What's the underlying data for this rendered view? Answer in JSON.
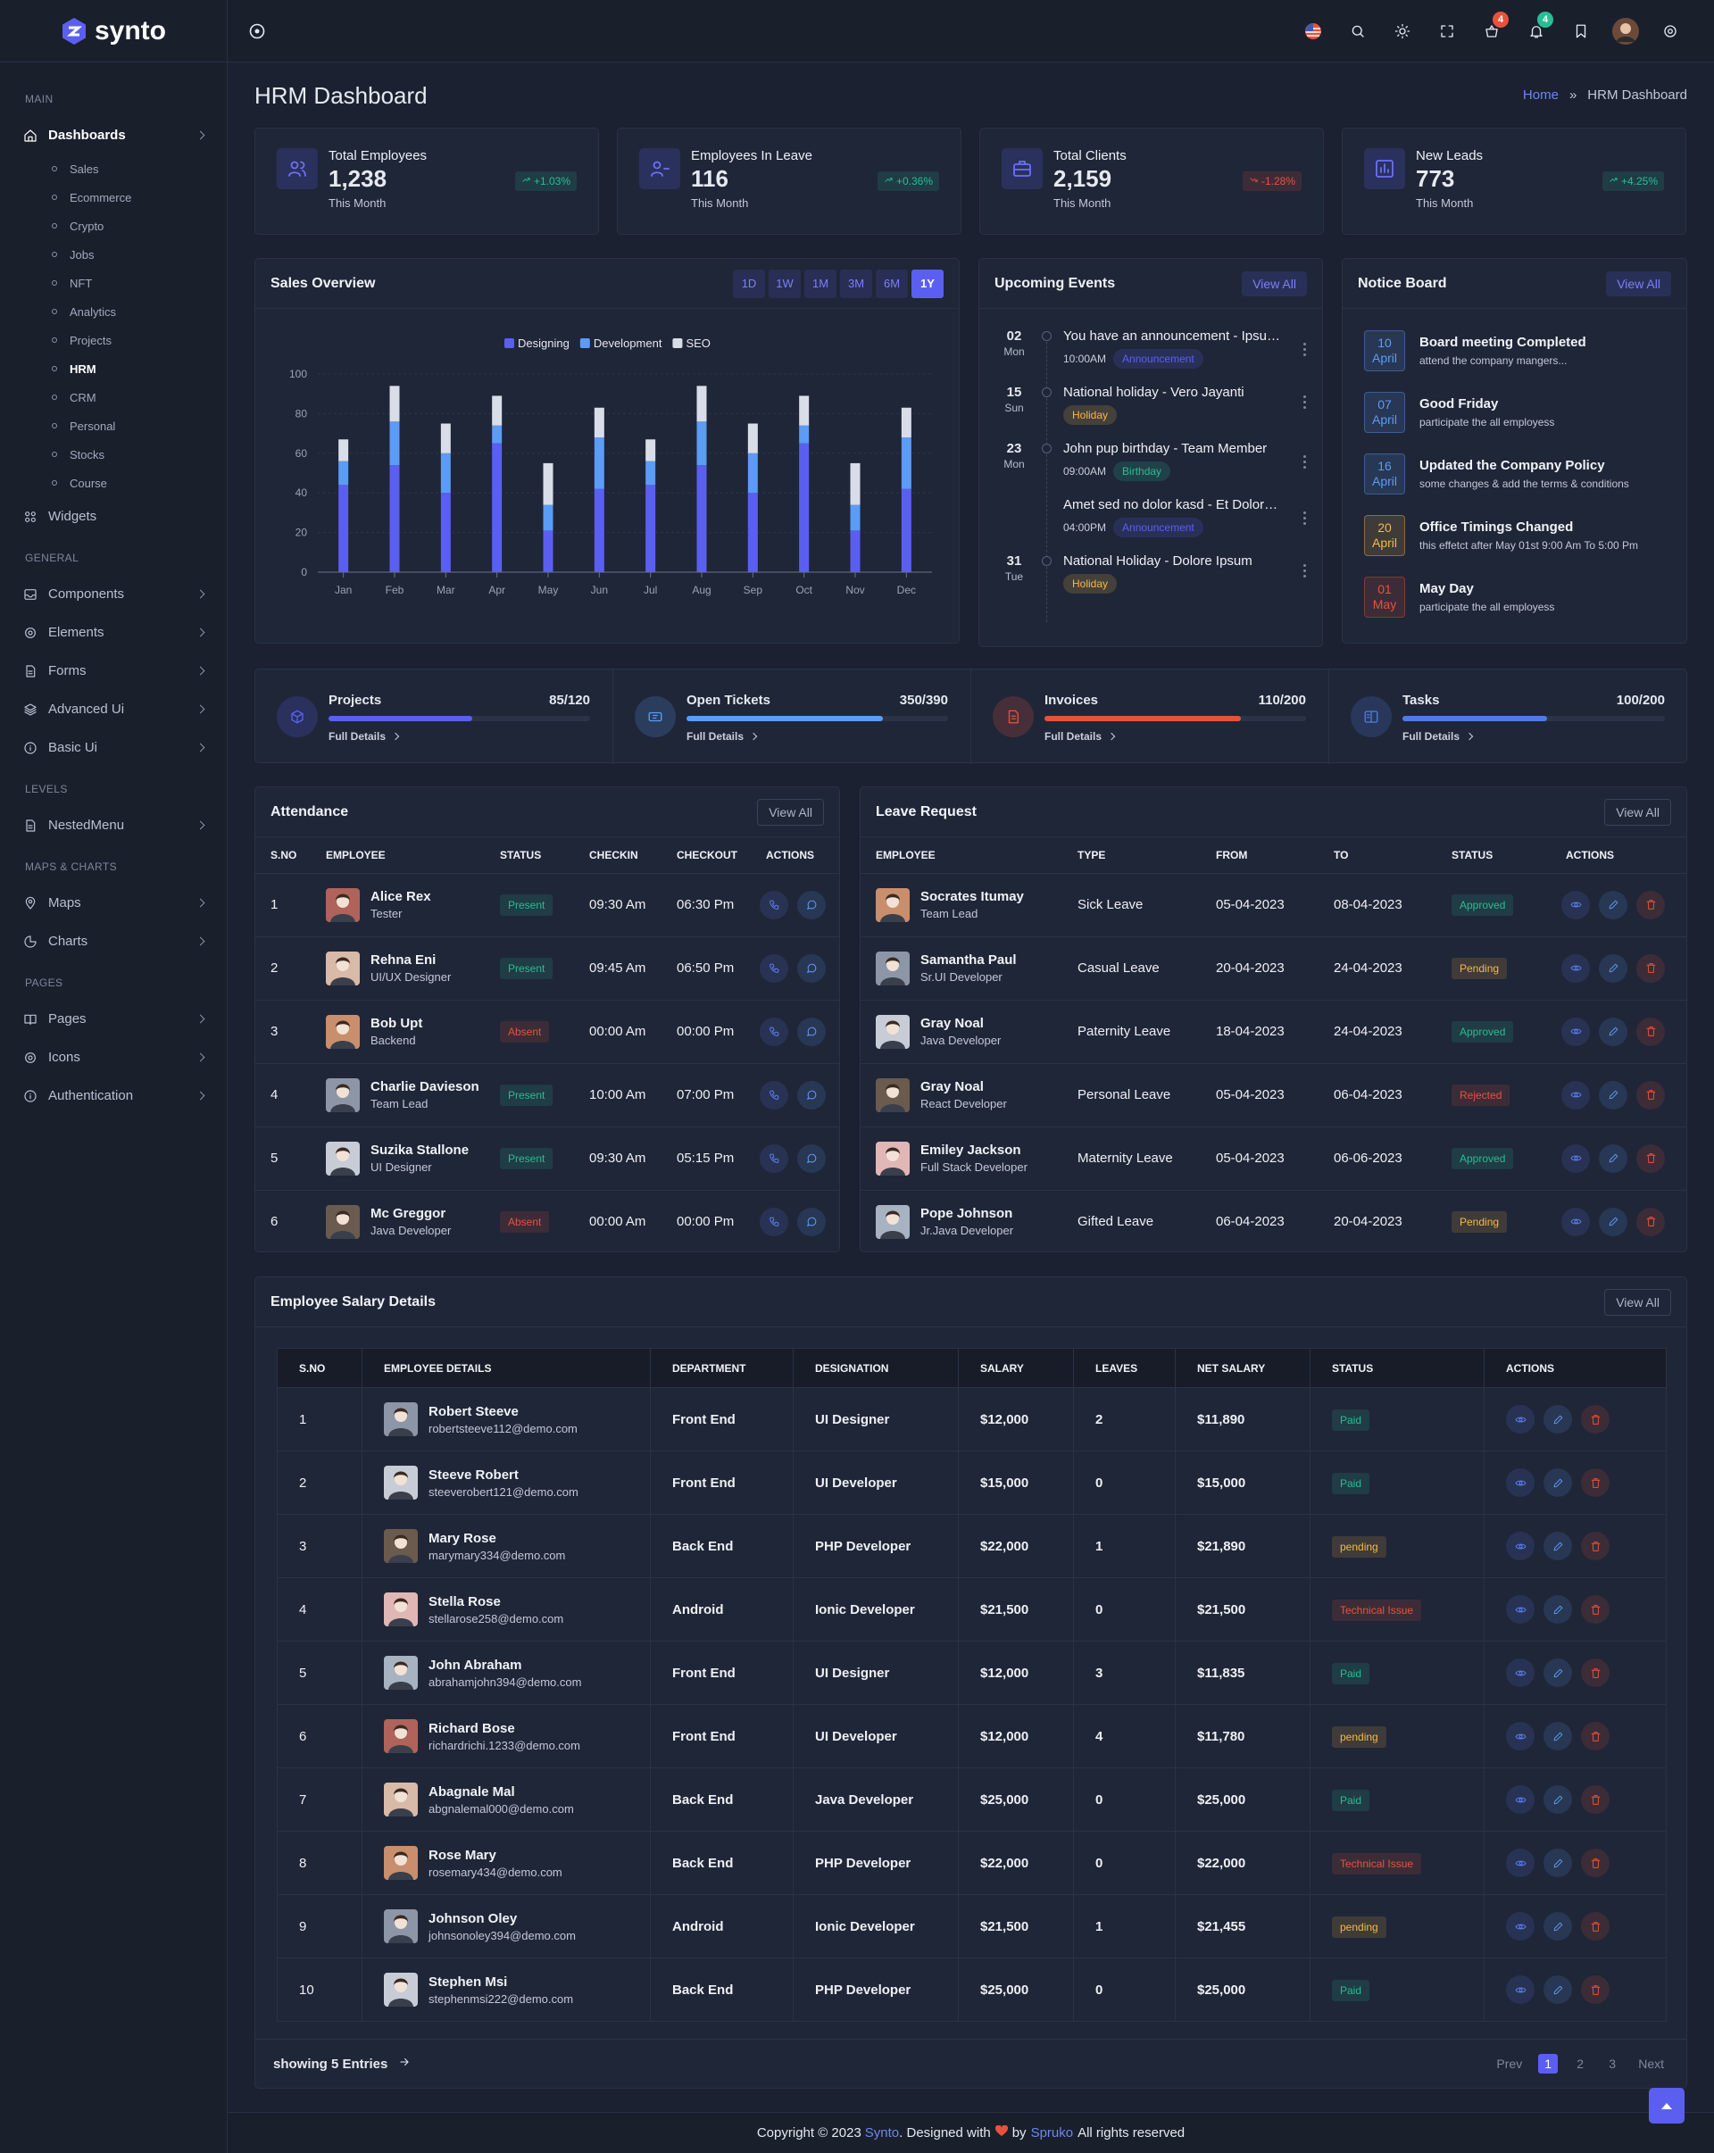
{
  "sidebar": {
    "brand": "synto",
    "sections": [
      {
        "label": "MAIN",
        "items": [
          {
            "label": "Dashboards",
            "active": true,
            "submenu": true,
            "children": [
              {
                "label": "Sales"
              },
              {
                "label": "Ecommerce"
              },
              {
                "label": "Crypto"
              },
              {
                "label": "Jobs"
              },
              {
                "label": "NFT"
              },
              {
                "label": "Analytics"
              },
              {
                "label": "Projects"
              },
              {
                "label": "HRM",
                "active": true
              },
              {
                "label": "CRM"
              },
              {
                "label": "Personal"
              },
              {
                "label": "Stocks"
              },
              {
                "label": "Course"
              }
            ]
          },
          {
            "label": "Widgets"
          }
        ]
      },
      {
        "label": "GENERAL",
        "items": [
          {
            "label": "Components",
            "submenu": true
          },
          {
            "label": "Elements",
            "submenu": true
          },
          {
            "label": "Forms",
            "submenu": true
          },
          {
            "label": "Advanced Ui",
            "submenu": true
          },
          {
            "label": "Basic Ui",
            "submenu": true
          }
        ]
      },
      {
        "label": "LEVELS",
        "items": [
          {
            "label": "NestedMenu",
            "submenu": true
          }
        ]
      },
      {
        "label": "MAPS & CHARTS",
        "items": [
          {
            "label": "Maps",
            "submenu": true
          },
          {
            "label": "Charts",
            "submenu": true
          }
        ]
      },
      {
        "label": "PAGES",
        "items": [
          {
            "label": "Pages",
            "submenu": true
          },
          {
            "label": "Icons",
            "submenu": true
          },
          {
            "label": "Authentication",
            "submenu": true
          }
        ]
      }
    ]
  },
  "header": {
    "badges": [
      "4",
      "4"
    ]
  },
  "page": {
    "title": "HRM Dashboard",
    "home": "Home",
    "separator": "»",
    "current": "HRM Dashboard"
  },
  "stats": [
    {
      "title": "Total Employees",
      "value": "1,238",
      "sub": "This Month",
      "change": "+1.03%",
      "change_color": "#26bf94"
    },
    {
      "title": "Employees In Leave",
      "value": "116",
      "sub": "This Month",
      "change": "+0.36%",
      "change_color": "#26bf94"
    },
    {
      "title": "Total Clients",
      "value": "2,159",
      "sub": "This Month",
      "change": "-1.28%",
      "change_color": "#e6533c"
    },
    {
      "title": "New Leads",
      "value": "773",
      "sub": "This Month",
      "change": "+4.25%",
      "change_color": "#26bf94"
    }
  ],
  "sales": {
    "title": "Sales Overview",
    "ranges": [
      {
        "label": "1D"
      },
      {
        "label": "1W"
      },
      {
        "label": "1M"
      },
      {
        "label": "3M"
      },
      {
        "label": "6M"
      },
      {
        "label": "1Y",
        "active": true
      }
    ]
  },
  "chart_data": {
    "type": "stacked_bar",
    "categories": [
      "Jan",
      "Feb",
      "Mar",
      "Apr",
      "May",
      "Jun",
      "Jul",
      "Aug",
      "Sep",
      "Oct",
      "Nov",
      "Dec"
    ],
    "series": [
      {
        "name": "Designing",
        "color": "#5b5ff0",
        "values": [
          44,
          54,
          40,
          65,
          21,
          42,
          44,
          54,
          40,
          65,
          21,
          42
        ]
      },
      {
        "name": "Development",
        "color": "#5b9cf5",
        "values": [
          12,
          22,
          20,
          9,
          13,
          26,
          12,
          22,
          20,
          9,
          13,
          26
        ]
      },
      {
        "name": "SEO",
        "color": "#d9dde8",
        "values": [
          11,
          18,
          15,
          15,
          21,
          15,
          11,
          18,
          15,
          15,
          21,
          15
        ]
      }
    ],
    "ylim": [
      0,
      100
    ],
    "yticks": [
      0,
      20,
      40,
      60,
      80,
      100
    ],
    "grid": true,
    "legend": "top"
  },
  "events": {
    "title": "Upcoming Events",
    "action": "View All",
    "items": [
      {
        "day": "02",
        "weekday": "Mon",
        "entries": [
          {
            "text": "You have an announcement - Ipsu…",
            "time": "10:00AM",
            "tag": "Announcement"
          }
        ]
      },
      {
        "day": "15",
        "weekday": "Sun",
        "entries": [
          {
            "text": "National holiday - Vero Jayanti",
            "tag": "Holiday"
          }
        ]
      },
      {
        "day": "23",
        "weekday": "Mon",
        "entries": [
          {
            "text": "John pup birthday - Team Member",
            "time": "09:00AM",
            "tag": "Birthday"
          },
          {
            "text": "Amet sed no dolor kasd - Et Dolor…",
            "time": "04:00PM",
            "tag": "Announcement"
          }
        ]
      },
      {
        "day": "31",
        "weekday": "Tue",
        "entries": [
          {
            "text": "National Holiday - Dolore Ipsum",
            "tag": "Holiday"
          }
        ]
      }
    ]
  },
  "tag_colors": {
    "Announcement": "#5b5ff0",
    "Holiday": "#f5b849",
    "Birthday": "#26bf94"
  },
  "notices": {
    "title": "Notice Board",
    "action": "View All",
    "items": [
      {
        "day": "10",
        "month": "April",
        "title": "Board meeting Completed",
        "text": "attend the company mangers...",
        "color": "#5b9cf5"
      },
      {
        "day": "07",
        "month": "April",
        "title": "Good Friday",
        "text": "participate the all employess",
        "color": "#5b9cf5"
      },
      {
        "day": "16",
        "month": "April",
        "title": "Updated the Company Policy",
        "text": "some changes & add the terms & conditions",
        "color": "#5b9cf5"
      },
      {
        "day": "20",
        "month": "April",
        "title": "Office Timings Changed",
        "text": "this effetct after May 01st 9:00 Am To 5:00 Pm",
        "color": "#f5b849"
      },
      {
        "day": "01",
        "month": "May",
        "title": "May Day",
        "text": "participate the all employess",
        "color": "#e6533c"
      }
    ]
  },
  "progress": [
    {
      "title": "Projects",
      "value": "85/120",
      "link": "Full Details",
      "progress": 55,
      "color": "#5b5ff0"
    },
    {
      "title": "Open Tickets",
      "value": "350/390",
      "link": "Full Details",
      "progress": 75,
      "color": "#5b9cf5"
    },
    {
      "title": "Invoices",
      "value": "110/200",
      "link": "Full Details",
      "progress": 75,
      "color": "#e6533c"
    },
    {
      "title": "Tasks",
      "value": "100/200",
      "link": "Full Details",
      "progress": 55,
      "color": "#4f7be8"
    }
  ],
  "status_colors": {
    "Present": "#26bf94",
    "Absent": "#e6533c",
    "Approved": "#26bf94",
    "Pending": "#f5b849",
    "Rejected": "#e6533c",
    "Paid": "#26bf94",
    "pending": "#f5b849",
    "Technical Issue": "#e6533c"
  },
  "attendance": {
    "title": "Attendance",
    "action": "View All",
    "headers": [
      "S.NO",
      "EMPLOYEE",
      "STATUS",
      "CHECKIN",
      "CHECKOUT",
      "ACTIONS"
    ],
    "rows": [
      {
        "sno": "1",
        "name": "Alice Rex",
        "role": "Tester",
        "status": "Present",
        "checkin": "09:30 Am",
        "checkout": "06:30 Pm"
      },
      {
        "sno": "2",
        "name": "Rehna Eni",
        "role": "UI/UX Designer",
        "status": "Present",
        "checkin": "09:45 Am",
        "checkout": "06:50 Pm"
      },
      {
        "sno": "3",
        "name": "Bob Upt",
        "role": "Backend",
        "status": "Absent",
        "checkin": "00:00 Am",
        "checkout": "00:00 Pm"
      },
      {
        "sno": "4",
        "name": "Charlie Davieson",
        "role": "Team Lead",
        "status": "Present",
        "checkin": "10:00 Am",
        "checkout": "07:00 Pm"
      },
      {
        "sno": "5",
        "name": "Suzika Stallone",
        "role": "UI Designer",
        "status": "Present",
        "checkin": "09:30 Am",
        "checkout": "05:15 Pm"
      },
      {
        "sno": "6",
        "name": "Mc Greggor",
        "role": "Java Developer",
        "status": "Absent",
        "checkin": "00:00 Am",
        "checkout": "00:00 Pm"
      }
    ]
  },
  "leave": {
    "title": "Leave Request",
    "action": "View All",
    "headers": [
      "EMPLOYEE",
      "TYPE",
      "FROM",
      "TO",
      "STATUS",
      "ACTIONS"
    ],
    "rows": [
      {
        "name": "Socrates Itumay",
        "role": "Team Lead",
        "type": "Sick Leave",
        "from": "05-04-2023",
        "to": "08-04-2023",
        "status": "Approved"
      },
      {
        "name": "Samantha Paul",
        "role": "Sr.UI Developer",
        "type": "Casual Leave",
        "from": "20-04-2023",
        "to": "24-04-2023",
        "status": "Pending"
      },
      {
        "name": "Gray Noal",
        "role": "Java Developer",
        "type": "Paternity Leave",
        "from": "18-04-2023",
        "to": "24-04-2023",
        "status": "Approved"
      },
      {
        "name": "Gray Noal",
        "role": "React Developer",
        "type": "Personal Leave",
        "from": "05-04-2023",
        "to": "06-04-2023",
        "status": "Rejected"
      },
      {
        "name": "Emiley Jackson",
        "role": "Full Stack Developer",
        "type": "Maternity Leave",
        "from": "05-04-2023",
        "to": "06-06-2023",
        "status": "Approved"
      },
      {
        "name": "Pope Johnson",
        "role": "Jr.Java Developer",
        "type": "Gifted Leave",
        "from": "06-04-2023",
        "to": "20-04-2023",
        "status": "Pending"
      }
    ]
  },
  "salary": {
    "title": "Employee Salary Details",
    "action": "View All",
    "headers": [
      "S.NO",
      "EMPLOYEE DETAILS",
      "DEPARTMENT",
      "DESIGNATION",
      "SALARY",
      "LEAVES",
      "NET SALARY",
      "STATUS",
      "ACTIONS"
    ],
    "rows": [
      {
        "sno": "1",
        "name": "Robert Steeve",
        "email": "robertsteeve112@demo.com",
        "department": "Front End",
        "designation": "UI Designer",
        "salary": "$12,000",
        "leaves": "2",
        "net": "$11,890",
        "status": "Paid"
      },
      {
        "sno": "2",
        "name": "Steeve Robert",
        "email": "steeverobert121@demo.com",
        "department": "Front End",
        "designation": "UI Developer",
        "salary": "$15,000",
        "leaves": "0",
        "net": "$15,000",
        "status": "Paid"
      },
      {
        "sno": "3",
        "name": "Mary Rose",
        "email": "marymary334@demo.com",
        "department": "Back End",
        "designation": "PHP Developer",
        "salary": "$22,000",
        "leaves": "1",
        "net": "$21,890",
        "status": "pending"
      },
      {
        "sno": "4",
        "name": "Stella Rose",
        "email": "stellarose258@demo.com",
        "department": "Android",
        "designation": "Ionic Developer",
        "salary": "$21,500",
        "leaves": "0",
        "net": "$21,500",
        "status": "Technical Issue"
      },
      {
        "sno": "5",
        "name": "John Abraham",
        "email": "abrahamjohn394@demo.com",
        "department": "Front End",
        "designation": "UI Designer",
        "salary": "$12,000",
        "leaves": "3",
        "net": "$11,835",
        "status": "Paid"
      },
      {
        "sno": "6",
        "name": "Richard Bose",
        "email": "richardrichi.1233@demo.com",
        "department": "Front End",
        "designation": "UI Developer",
        "salary": "$12,000",
        "leaves": "4",
        "net": "$11,780",
        "status": "pending"
      },
      {
        "sno": "7",
        "name": "Abagnale Mal",
        "email": "abgnalemal000@demo.com",
        "department": "Back End",
        "designation": "Java Developer",
        "salary": "$25,000",
        "leaves": "0",
        "net": "$25,000",
        "status": "Paid"
      },
      {
        "sno": "8",
        "name": "Rose Mary",
        "email": "rosemary434@demo.com",
        "department": "Back End",
        "designation": "PHP Developer",
        "salary": "$22,000",
        "leaves": "0",
        "net": "$22,000",
        "status": "Technical Issue"
      },
      {
        "sno": "9",
        "name": "Johnson Oley",
        "email": "johnsonoley394@demo.com",
        "department": "Android",
        "designation": "Ionic Developer",
        "salary": "$21,500",
        "leaves": "1",
        "net": "$21,455",
        "status": "pending"
      },
      {
        "sno": "10",
        "name": "Stephen Msi",
        "email": "stephenmsi222@demo.com",
        "department": "Back End",
        "designation": "PHP Developer",
        "salary": "$25,000",
        "leaves": "0",
        "net": "$25,000",
        "status": "Paid"
      }
    ],
    "showing": "showing 5 Entries",
    "pages": [
      {
        "label": "Prev"
      },
      {
        "label": "1",
        "active": true
      },
      {
        "label": "2"
      },
      {
        "label": "3"
      },
      {
        "label": "Next"
      }
    ]
  },
  "footer": {
    "prefix": "Copyright © 2023",
    "brand": "Synto",
    "middle": ". Designed with",
    "by": "by",
    "company": "Spruko",
    "suffix": "All rights reserved"
  }
}
